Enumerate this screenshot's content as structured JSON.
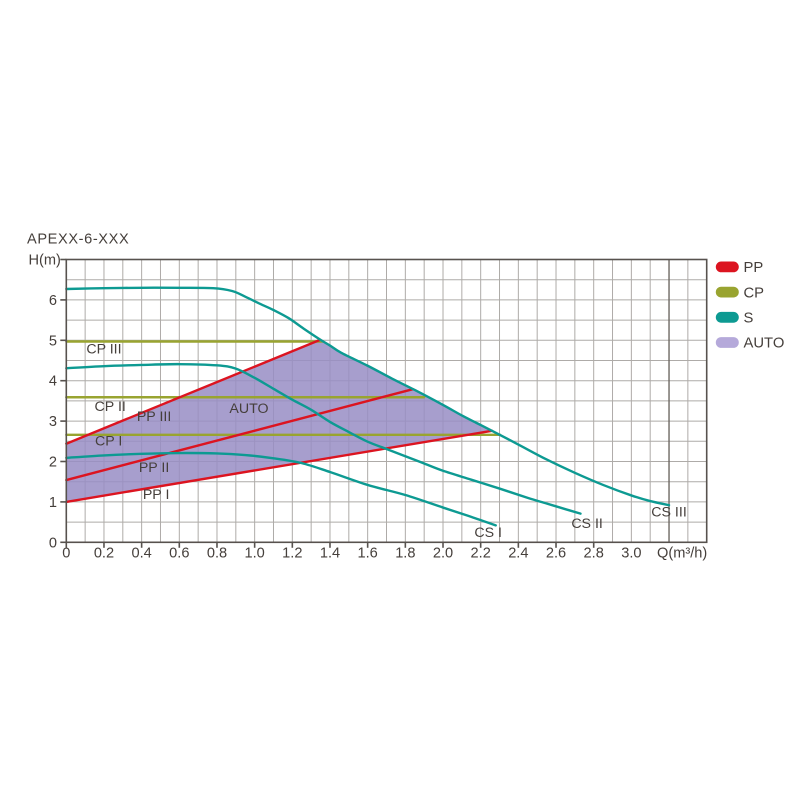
{
  "title": "APEXX-6-XXX",
  "colors": {
    "background": "#ffffff",
    "frame": "#57524e",
    "grid": "#aeaba8",
    "grid_dark": "#6e6964",
    "text": "#453f3b",
    "pp_red": "#dc1420",
    "cp_olive": "#99a430",
    "s_teal": "#0d9a92",
    "auto_fill": "#988dc4",
    "auto_legend": "#b5a9da"
  },
  "legend": {
    "position": "top-right",
    "items": [
      {
        "label": "PP",
        "color": "#dc1420"
      },
      {
        "label": "CP",
        "color": "#99a430"
      },
      {
        "label": "S",
        "color": "#0d9a92"
      },
      {
        "label": "AUTO",
        "color": "#b5a9da"
      }
    ]
  },
  "chart_data": {
    "type": "line",
    "title": "APEXX-6-XXX",
    "xlabel": "Q(m³/h)",
    "ylabel": "H(m)",
    "xlim": [
      0,
      3.4
    ],
    "ylim": [
      0,
      7
    ],
    "grid": true,
    "x_minor_step": 0.1,
    "y_minor_step": 0.5,
    "x_dark_gridline": 3.2,
    "x_tick_step": 0.2,
    "x_tick_labels": [
      "0",
      "0.2",
      "0.4",
      "0.6",
      "0.8",
      "1.0",
      "1.2",
      "1.4",
      "1.6",
      "1.8",
      "2.0",
      "2.2",
      "2.4",
      "2.6",
      "2.8",
      "3.0"
    ],
    "x_tick_marks_until": 2.8,
    "y_tick_labels": [
      "0",
      "1",
      "2",
      "3",
      "4",
      "5",
      "6"
    ],
    "series": [
      {
        "name": "PP I",
        "group": "PP",
        "color": "#dc1420",
        "smooth": false,
        "points": [
          [
            0,
            1.0
          ],
          [
            2.26,
            2.76
          ]
        ],
        "label": {
          "text": "PP I",
          "x": 0.477,
          "y": 1.2
        }
      },
      {
        "name": "PP II",
        "group": "PP",
        "color": "#dc1420",
        "smooth": false,
        "points": [
          [
            0,
            1.54
          ],
          [
            1.84,
            3.79
          ]
        ],
        "label": {
          "text": "PP II",
          "x": 0.466,
          "y": 1.87
        }
      },
      {
        "name": "PP III",
        "group": "PP",
        "color": "#dc1420",
        "smooth": false,
        "points": [
          [
            0,
            2.44
          ],
          [
            1.347,
            5.01
          ]
        ],
        "label": {
          "text": "PP III",
          "x": 0.466,
          "y": 3.13
        }
      },
      {
        "name": "CP I",
        "group": "CP",
        "color": "#99a430",
        "smooth": false,
        "points": [
          [
            0,
            2.66
          ],
          [
            2.303,
            2.66
          ]
        ],
        "label": {
          "text": "CP I",
          "x": 0.225,
          "y": 2.52
        }
      },
      {
        "name": "CP II",
        "group": "CP",
        "color": "#99a430",
        "smooth": false,
        "points": [
          [
            0,
            3.59
          ],
          [
            1.9,
            3.59
          ]
        ],
        "label": {
          "text": "CP II",
          "x": 0.233,
          "y": 3.38
        }
      },
      {
        "name": "CP III",
        "group": "CP",
        "color": "#99a430",
        "smooth": false,
        "points": [
          [
            0,
            4.97
          ],
          [
            1.362,
            4.97
          ]
        ],
        "label": {
          "text": "CP III",
          "x": 0.2,
          "y": 4.8
        }
      },
      {
        "name": "CS I",
        "group": "S",
        "color": "#0d9a92",
        "smooth": true,
        "points": [
          [
            0,
            2.09
          ],
          [
            0.2,
            2.15
          ],
          [
            0.4,
            2.19
          ],
          [
            0.6,
            2.21
          ],
          [
            0.8,
            2.2
          ],
          [
            0.95,
            2.16
          ],
          [
            1.1,
            2.08
          ],
          [
            1.25,
            1.96
          ],
          [
            1.4,
            1.74
          ],
          [
            1.6,
            1.42
          ],
          [
            1.8,
            1.17
          ],
          [
            2.0,
            0.86
          ],
          [
            2.15,
            0.63
          ],
          [
            2.28,
            0.42
          ]
        ],
        "label": {
          "text": "CS I",
          "x": 2.24,
          "y": 0.25
        }
      },
      {
        "name": "CS II",
        "group": "S",
        "color": "#0d9a92",
        "smooth": true,
        "points": [
          [
            0,
            4.31
          ],
          [
            0.2,
            4.36
          ],
          [
            0.4,
            4.39
          ],
          [
            0.6,
            4.41
          ],
          [
            0.8,
            4.38
          ],
          [
            0.9,
            4.3
          ],
          [
            1.0,
            4.07
          ],
          [
            1.1,
            3.8
          ],
          [
            1.2,
            3.53
          ],
          [
            1.3,
            3.28
          ],
          [
            1.4,
            2.98
          ],
          [
            1.5,
            2.73
          ],
          [
            1.6,
            2.49
          ],
          [
            1.7,
            2.31
          ],
          [
            1.8,
            2.13
          ],
          [
            1.9,
            1.95
          ],
          [
            2.0,
            1.77
          ],
          [
            2.15,
            1.55
          ],
          [
            2.3,
            1.33
          ],
          [
            2.45,
            1.1
          ],
          [
            2.55,
            0.96
          ],
          [
            2.65,
            0.82
          ],
          [
            2.73,
            0.71
          ]
        ],
        "label": {
          "text": "CS II",
          "x": 2.765,
          "y": 0.48
        }
      },
      {
        "name": "CS III",
        "group": "S",
        "color": "#0d9a92",
        "smooth": true,
        "points": [
          [
            0,
            6.27
          ],
          [
            0.2,
            6.29
          ],
          [
            0.4,
            6.3
          ],
          [
            0.6,
            6.3
          ],
          [
            0.78,
            6.29
          ],
          [
            0.88,
            6.22
          ],
          [
            0.95,
            6.08
          ],
          [
            1.03,
            5.9
          ],
          [
            1.1,
            5.75
          ],
          [
            1.18,
            5.55
          ],
          [
            1.26,
            5.29
          ],
          [
            1.347,
            5.02
          ],
          [
            1.4,
            4.87
          ],
          [
            1.46,
            4.69
          ],
          [
            1.6,
            4.37
          ],
          [
            1.73,
            4.05
          ],
          [
            1.85,
            3.77
          ],
          [
            2.0,
            3.4
          ],
          [
            2.1,
            3.14
          ],
          [
            2.18,
            2.95
          ],
          [
            2.26,
            2.76
          ],
          [
            2.4,
            2.42
          ],
          [
            2.55,
            2.05
          ],
          [
            2.7,
            1.72
          ],
          [
            2.85,
            1.42
          ],
          [
            3.0,
            1.16
          ],
          [
            3.1,
            1.02
          ],
          [
            3.2,
            0.92
          ]
        ],
        "label": {
          "text": "CS III",
          "x": 3.2,
          "y": 0.76
        }
      }
    ],
    "auto_region": {
      "label": {
        "text": "AUTO",
        "x": 0.97,
        "y": 3.32
      },
      "fill": "#988dc4",
      "fill_opacity": 0.85,
      "lower_boundary": "PP I",
      "upper_boundary": "PP III",
      "arc_boundary": "CS III",
      "left_boundary_x": 0
    }
  }
}
